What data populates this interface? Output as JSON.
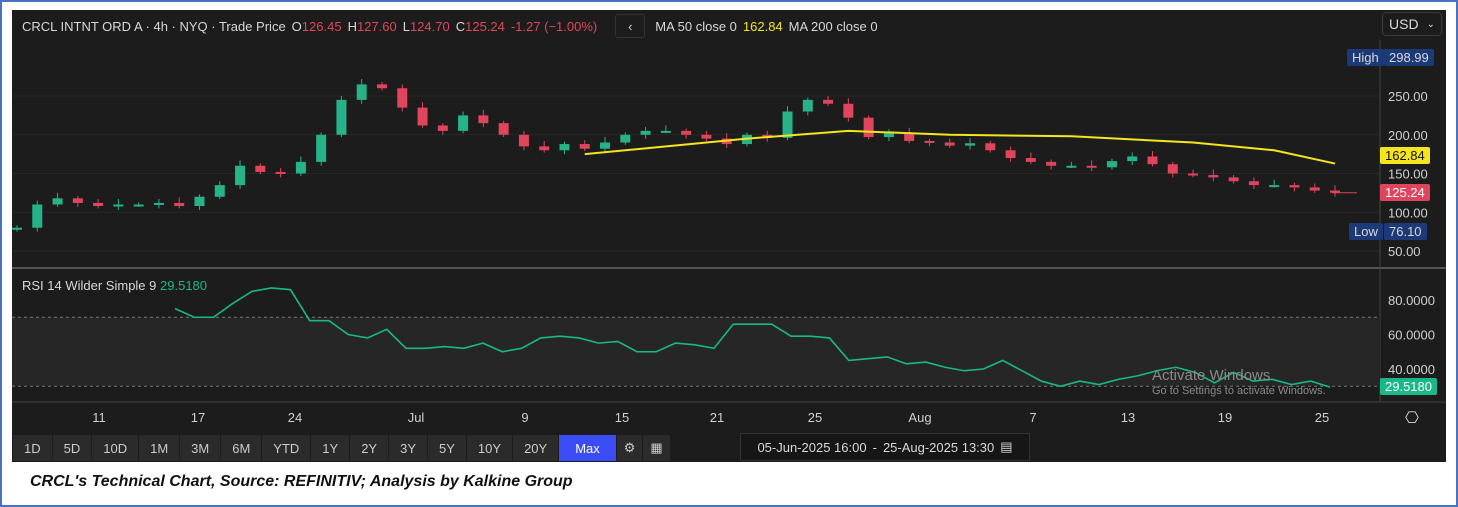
{
  "header": {
    "symbol": "CRCL INTNT ORD A · 4h · NYQ · Trade Price",
    "o_label": "O",
    "o": "126.45",
    "h_label": "H",
    "h": "127.60",
    "l_label": "L",
    "l": "124.70",
    "c_label": "C",
    "c": "125.24",
    "change": "-1.27 (−1.00%)",
    "ma50_label": "MA 50 close 0",
    "ma50_value": "162.84",
    "ma200_label": "MA 200 close 0"
  },
  "currency": "USD",
  "badges": {
    "high_label": "High",
    "high": "298.99",
    "low_label": "Low",
    "low": "76.10",
    "ma": "162.84",
    "last": "125.24",
    "rsi": "29.5180"
  },
  "rsi_header": {
    "label": "RSI 14 Wilder Simple 9",
    "value": "29.5180"
  },
  "timeframes": [
    "1D",
    "5D",
    "10D",
    "1M",
    "3M",
    "6M",
    "YTD",
    "1Y",
    "2Y",
    "3Y",
    "5Y",
    "10Y",
    "20Y",
    "Max"
  ],
  "active_timeframe": "Max",
  "date_range": {
    "start": "05-Jun-2025 16:00",
    "sep": "-",
    "end": "25-Aug-2025 13:30"
  },
  "watermark": {
    "line1": "Activate Windows",
    "line2": "Go to Settings to activate Windows."
  },
  "caption": "CRCL's Technical Chart, Source: REFINITIV; Analysis by Kalkine Group",
  "colors": {
    "up": "#26b38a",
    "down": "#e0455e",
    "ma": "#f5e51e",
    "rsi": "#19b88a",
    "bg": "#1c1c1c"
  },
  "chart_data": [
    {
      "type": "candlestick",
      "title": "CRCL INTNT ORD A 4h",
      "ylim": [
        25,
        320
      ],
      "yticks": [
        50,
        100,
        150,
        200,
        250
      ],
      "xticks": [
        "11",
        "17",
        "24",
        "Jul",
        "9",
        "15",
        "21",
        "25",
        "Aug",
        "7",
        "13",
        "19",
        "25"
      ],
      "open0": 78,
      "closes": [
        80,
        110,
        118,
        112,
        108,
        110,
        110,
        112,
        108,
        120,
        135,
        160,
        152,
        150,
        165,
        200,
        245,
        265,
        260,
        235,
        212,
        205,
        225,
        215,
        200,
        185,
        180,
        188,
        182,
        190,
        200,
        205,
        205,
        200,
        195,
        188,
        200,
        196,
        230,
        245,
        240,
        222,
        197,
        202,
        192,
        190,
        186,
        189,
        180,
        170,
        165,
        160,
        160,
        158,
        166,
        172,
        162,
        150,
        148,
        145,
        140,
        135,
        135,
        132,
        128,
        125.24
      ],
      "ma50": {
        "name": "MA 50 close",
        "points": [
          [
            28,
            175
          ],
          [
            36,
            195
          ],
          [
            41,
            205
          ],
          [
            46,
            200
          ],
          [
            52,
            198
          ],
          [
            58,
            190
          ],
          [
            62,
            180
          ],
          [
            65,
            162.84
          ]
        ]
      }
    },
    {
      "type": "line",
      "title": "RSI 14 Wilder Simple 9",
      "ylim": [
        20,
        90
      ],
      "yticks": [
        40,
        60,
        80
      ],
      "bands": [
        30,
        70
      ],
      "values": [
        75,
        70,
        70,
        78,
        85,
        87,
        86,
        68,
        68,
        60,
        58,
        63,
        52,
        52,
        53,
        52,
        55,
        50,
        52,
        58,
        59,
        58,
        55,
        56,
        50,
        50,
        55,
        54,
        52,
        66,
        66,
        66,
        59,
        59,
        58,
        45,
        46,
        47,
        43,
        44,
        41,
        39,
        40,
        45,
        39,
        33,
        30,
        33,
        31,
        34,
        36,
        39,
        41,
        38,
        32,
        38,
        33,
        34,
        31,
        33,
        29.5
      ]
    }
  ]
}
